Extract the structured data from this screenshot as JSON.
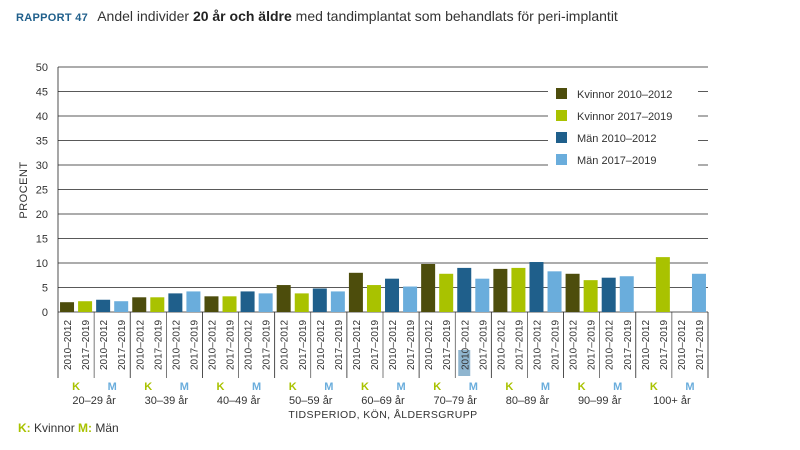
{
  "header": {
    "report_tag": "RAPPORT 47",
    "title_part1": "Andel individer",
    "title_bold": "20 år och äldre",
    "title_part2": "med tandimplantat som behandlats för peri-implantit"
  },
  "footnote": {
    "k_key": "K:",
    "k_text": "Kvinnor",
    "m_key": "M:",
    "m_text": "Män"
  },
  "chart_data": {
    "type": "bar",
    "ylabel": "PROCENT",
    "xlabel": "TIDSPERIOD, KÖN, ÅLDERSGRUPP",
    "ylim": [
      0,
      50
    ],
    "yticks": [
      0,
      5,
      10,
      15,
      20,
      25,
      30,
      35,
      40,
      45,
      50
    ],
    "grid": true,
    "legend_position": "top-right",
    "categories": [
      "20–29 år",
      "30–39 år",
      "40–49 år",
      "50–59 år",
      "60–69 år",
      "70–79 år",
      "80–89 år",
      "90–99 år",
      "100+ år"
    ],
    "sex_labels": [
      "K",
      "M"
    ],
    "period_labels": [
      "2010–2012",
      "2017–2019"
    ],
    "colors": {
      "kvinnor_2010_2012": "#4d4d0c",
      "kvinnor_2017_2019": "#a9c200",
      "man_2010_2012": "#1f5f8b",
      "man_2017_2019": "#6aaddc",
      "sex_k": "#a9c200",
      "sex_m": "#6aaddc",
      "gridline": "#222222",
      "highlight": "#8fb5cf"
    },
    "series": [
      {
        "name": "Kvinnor 2010–2012",
        "values": [
          2.0,
          3.0,
          3.2,
          5.5,
          8.0,
          9.8,
          8.8,
          7.8,
          null
        ]
      },
      {
        "name": "Kvinnor 2017–2019",
        "values": [
          2.2,
          3.0,
          3.2,
          3.8,
          5.5,
          7.8,
          9.0,
          6.5,
          11.2
        ]
      },
      {
        "name": "Män 2010–2012",
        "values": [
          2.5,
          3.8,
          4.2,
          4.8,
          6.8,
          9.0,
          10.2,
          7.0,
          null
        ]
      },
      {
        "name": "Män 2017–2019",
        "values": [
          2.2,
          4.2,
          3.8,
          4.2,
          5.2,
          6.8,
          8.3,
          7.3,
          7.8
        ]
      }
    ]
  }
}
